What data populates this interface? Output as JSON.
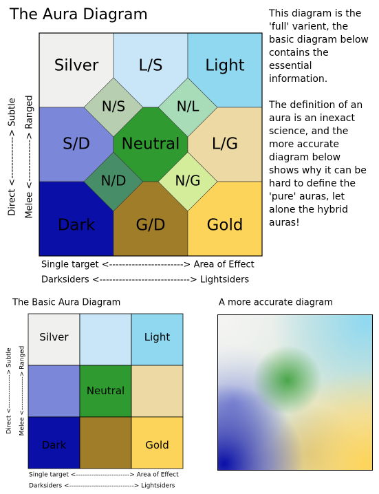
{
  "title": "The Aura Diagram",
  "notes": [
    [
      "This diagram is the",
      "'full' varient, the",
      "basic diagram below",
      "contains the",
      "essential",
      "information."
    ],
    [
      "The definition of an",
      "aura is an inexact",
      "science, and the",
      "more accurate",
      "diagram below",
      "shows why it can be",
      "hard to define the",
      "'pure' auras, let",
      "alone the hybrid",
      "auras!"
    ]
  ],
  "main_diagram": {
    "cells": [
      "Silver",
      "L/S",
      "Light",
      "S/D",
      "Neutral",
      "L/G",
      "Dark",
      "G/D",
      "Gold"
    ],
    "hybrids": [
      "N/S",
      "N/L",
      "N/D",
      "N/G"
    ],
    "axis_left": "Direct <-------------> Subtle",
    "axis_left2": "Melee <-------------> Ranged",
    "axis_bottom": "Single target <-----------------------> Area of Effect",
    "axis_bottom2": "Darksiders <----------------------------> Lightsiders"
  },
  "basic_diagram": {
    "title": "The Basic Aura Diagram",
    "cells": [
      "Silver",
      "Light",
      "Neutral",
      "Dark",
      "Gold"
    ],
    "axis_left": "Direct <---------------> Subtle",
    "axis_left2": "Melee <---------------> Ranged",
    "axis_bottom": "Single target <------------------------> Area of Effect",
    "axis_bottom2": "Darksiders <-----------------------------> Lightsiders"
  },
  "accurate_diagram": {
    "title": "A more accurate diagram"
  }
}
